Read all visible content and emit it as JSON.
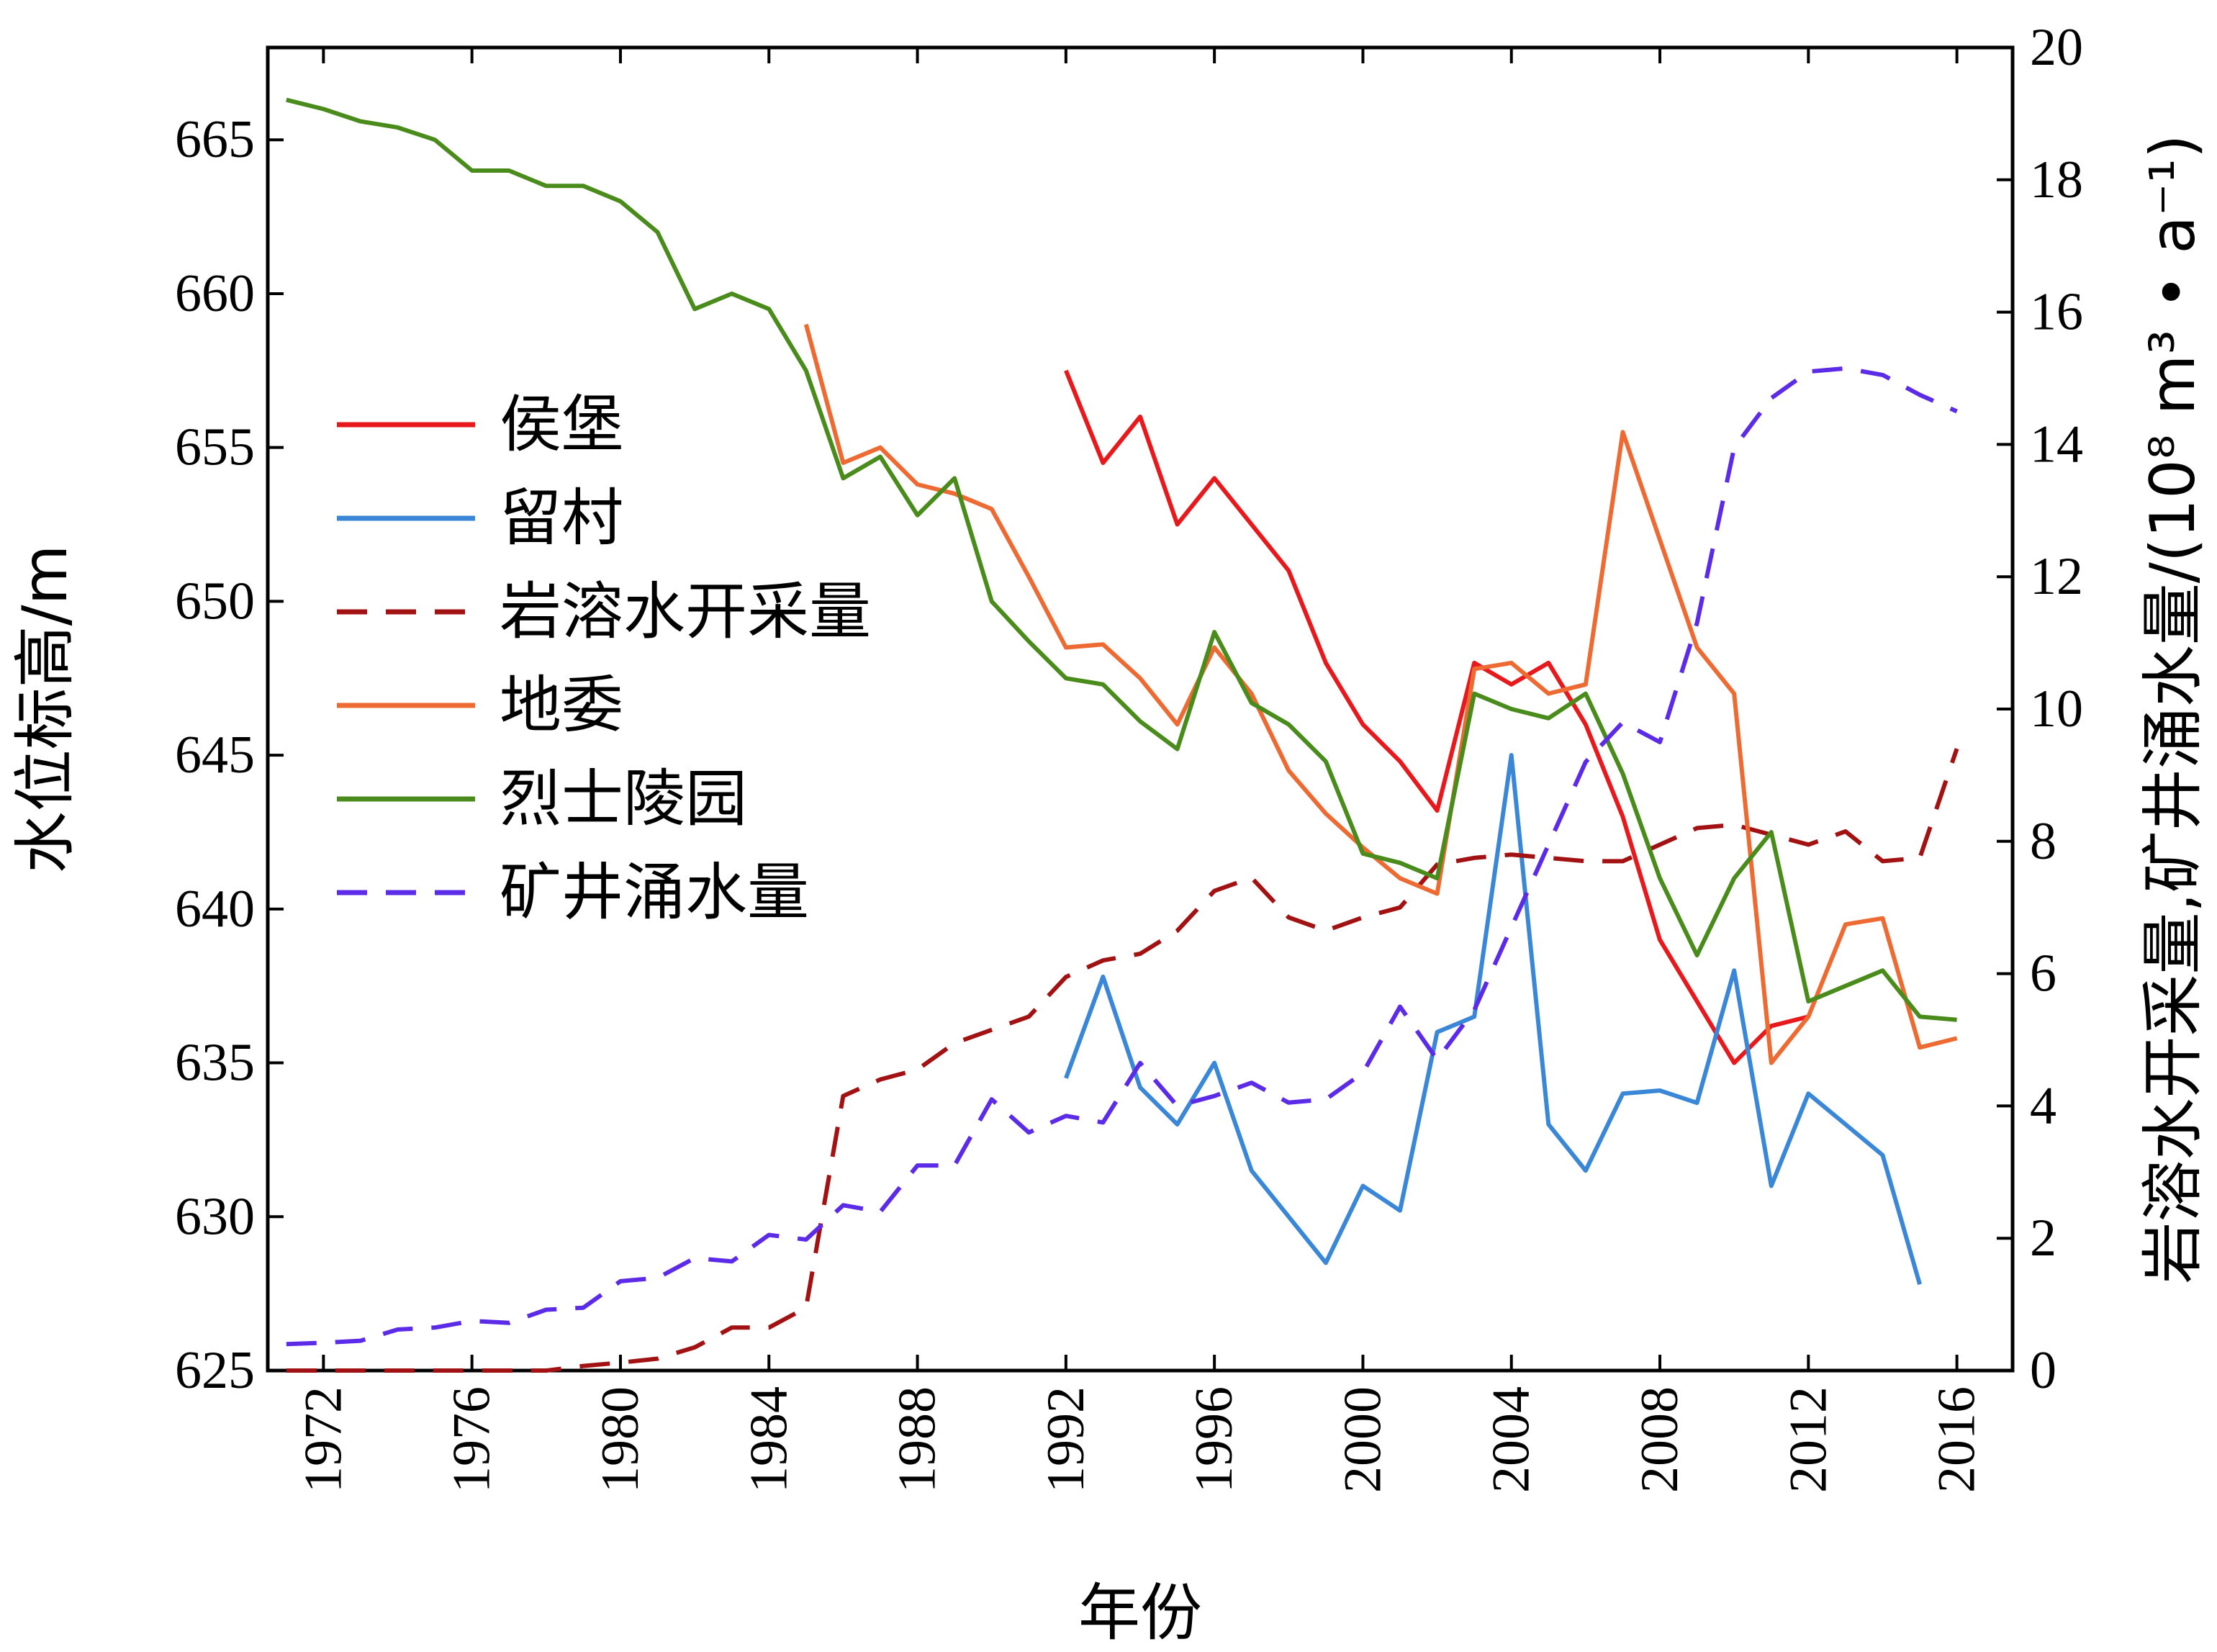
{
  "chart_data": {
    "type": "line",
    "xlabel": "年份",
    "ylabel_left": "水位标高/m",
    "ylabel_right": "岩溶水开采量,矿井涌水量/(10⁸ m³ • a⁻¹)",
    "xlim": [
      1970.5,
      2017.5
    ],
    "ylim_left": [
      625,
      668
    ],
    "ylim_right": [
      0,
      20
    ],
    "x_ticks": [
      "1972",
      "1976",
      "1980",
      "1984",
      "1988",
      "1992",
      "1996",
      "2000",
      "2004",
      "2008",
      "2012",
      "2016"
    ],
    "y_ticks_left": [
      "625",
      "630",
      "635",
      "640",
      "645",
      "650",
      "655",
      "660",
      "665"
    ],
    "y_ticks_right": [
      "0",
      "2",
      "4",
      "6",
      "8",
      "10",
      "12",
      "14",
      "16",
      "18",
      "20"
    ],
    "grid": false,
    "legend_position": "upper-left",
    "series": [
      {
        "name": "侯堡",
        "axis": "left",
        "color": "#e8191c",
        "dash": "solid",
        "x": [
          1992,
          1993,
          1994,
          1995,
          1996,
          1997,
          1998,
          1999,
          2000,
          2001,
          2002,
          2003,
          2004,
          2005,
          2006,
          2007,
          2008,
          2009,
          2010,
          2011,
          2012
        ],
        "y": [
          657.5,
          654.5,
          656.0,
          652.5,
          654.0,
          652.5,
          651.0,
          648.0,
          646.0,
          644.8,
          643.2,
          648.0,
          647.3,
          648.0,
          646.0,
          643.0,
          639.0,
          637.0,
          635.0,
          636.2,
          636.5
        ]
      },
      {
        "name": "留村",
        "axis": "left",
        "color": "#3a87d8",
        "dash": "solid",
        "x": [
          1992,
          1993,
          1994,
          1995,
          1996,
          1997,
          1998,
          1999,
          2000,
          2001,
          2002,
          2003,
          2004,
          2005,
          2006,
          2007,
          2008,
          2009,
          2010,
          2011,
          2012,
          2013,
          2014,
          2015
        ],
        "y": [
          634.5,
          637.8,
          634.2,
          633.0,
          635.0,
          631.5,
          630.0,
          628.5,
          631.0,
          630.2,
          636.0,
          636.5,
          645.0,
          633.0,
          631.5,
          634.0,
          634.1,
          633.7,
          638.0,
          631.0,
          634.0,
          633.0,
          632.0,
          627.8
        ]
      },
      {
        "name": "岩溶水开采量",
        "axis": "right",
        "color": "#a31212",
        "dash": "dashed",
        "x": [
          1971,
          1972,
          1973,
          1974,
          1975,
          1976,
          1977,
          1978,
          1979,
          1980,
          1981,
          1982,
          1983,
          1984,
          1985,
          1986,
          1987,
          1988,
          1989,
          1990,
          1991,
          1992,
          1993,
          1994,
          1995,
          1996,
          1997,
          1998,
          1999,
          2000,
          2001,
          2002,
          2003,
          2004,
          2005,
          2006,
          2007,
          2008,
          2009,
          2010,
          2011,
          2012,
          2013,
          2014,
          2015,
          2016
        ],
        "y": [
          0.0,
          0.0,
          0.0,
          0.0,
          0.0,
          0.0,
          0.0,
          0.0,
          0.07,
          0.12,
          0.18,
          0.35,
          0.65,
          0.65,
          0.95,
          4.15,
          4.4,
          4.55,
          4.95,
          5.15,
          5.35,
          5.95,
          6.2,
          6.3,
          6.65,
          7.25,
          7.45,
          6.85,
          6.65,
          6.85,
          7.0,
          7.65,
          7.75,
          7.8,
          7.75,
          7.7,
          7.7,
          7.95,
          8.2,
          8.25,
          8.1,
          7.95,
          8.15,
          7.7,
          7.75,
          9.4
        ]
      },
      {
        "name": "地委",
        "axis": "left",
        "color": "#ee6a33",
        "dash": "solid",
        "x": [
          1985,
          1986,
          1987,
          1988,
          1989,
          1990,
          1991,
          1992,
          1993,
          1994,
          1995,
          1996,
          1997,
          1998,
          1999,
          2000,
          2001,
          2002,
          2003,
          2004,
          2005,
          2006,
          2007,
          2008,
          2009,
          2010,
          2011,
          2012,
          2013,
          2014,
          2015,
          2016
        ],
        "y": [
          659.0,
          654.5,
          655.0,
          653.8,
          653.5,
          653.0,
          650.8,
          648.5,
          648.6,
          647.5,
          646.0,
          648.5,
          647.0,
          644.5,
          643.1,
          642.0,
          641.0,
          640.5,
          647.8,
          648.0,
          647.0,
          647.3,
          655.5,
          652.0,
          648.5,
          647.0,
          635.0,
          636.5,
          639.5,
          639.7,
          635.5,
          635.8
        ]
      },
      {
        "name": "烈士陵园",
        "axis": "left",
        "color": "#4a8c1c",
        "dash": "solid",
        "x": [
          1971,
          1972,
          1973,
          1974,
          1975,
          1976,
          1977,
          1978,
          1979,
          1980,
          1981,
          1982,
          1983,
          1984,
          1985,
          1986,
          1987,
          1988,
          1989,
          1990,
          1991,
          1992,
          1993,
          1994,
          1995,
          1996,
          1997,
          1998,
          1999,
          2000,
          2001,
          2002,
          2003,
          2004,
          2005,
          2006,
          2007,
          2008,
          2009,
          2010,
          2011,
          2012,
          2013,
          2014,
          2015,
          2016
        ],
        "y": [
          666.3,
          666.0,
          665.6,
          665.4,
          665.0,
          664.0,
          664.0,
          663.5,
          663.5,
          663.0,
          662.0,
          659.5,
          660.0,
          659.5,
          657.5,
          654.0,
          654.7,
          652.8,
          654.0,
          650.0,
          648.7,
          647.5,
          647.3,
          646.1,
          645.2,
          649.0,
          646.7,
          646.0,
          644.8,
          641.8,
          641.5,
          641.0,
          647.0,
          646.5,
          646.2,
          647.0,
          644.4,
          641.0,
          638.5,
          641.0,
          642.5,
          637.0,
          637.5,
          638.0,
          636.5,
          636.4
        ]
      },
      {
        "name": "矿井涌水量",
        "axis": "right",
        "color": "#5b2be8",
        "dash": "dashed",
        "x": [
          1971,
          1972,
          1973,
          1974,
          1975,
          1976,
          1977,
          1978,
          1979,
          1980,
          1981,
          1982,
          1983,
          1984,
          1985,
          1986,
          1987,
          1988,
          1989,
          1990,
          1991,
          1992,
          1993,
          1994,
          1995,
          1996,
          1997,
          1998,
          1999,
          2000,
          2001,
          2002,
          2003,
          2004,
          2005,
          2006,
          2007,
          2008,
          2009,
          2010,
          2011,
          2012,
          2013,
          2014,
          2015,
          2016
        ],
        "y": [
          0.4,
          0.42,
          0.45,
          0.62,
          0.65,
          0.75,
          0.72,
          0.92,
          0.95,
          1.35,
          1.4,
          1.7,
          1.65,
          2.05,
          1.98,
          2.5,
          2.4,
          3.1,
          3.1,
          4.1,
          3.6,
          3.85,
          3.75,
          4.65,
          4.0,
          4.15,
          4.35,
          4.05,
          4.1,
          4.5,
          5.5,
          4.7,
          5.45,
          6.7,
          7.95,
          9.2,
          9.8,
          9.5,
          11.3,
          13.95,
          14.7,
          15.1,
          15.15,
          15.05,
          14.75,
          14.5
        ]
      }
    ]
  }
}
